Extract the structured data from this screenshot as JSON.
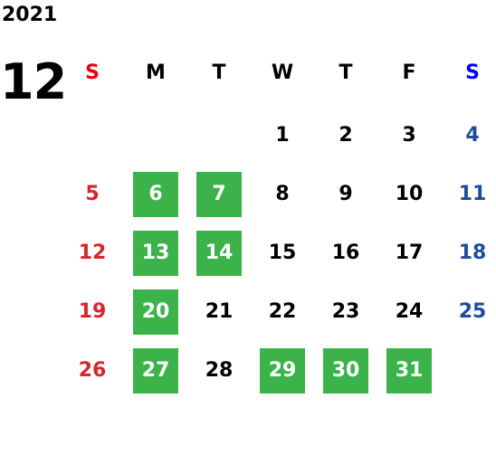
{
  "year": "2021",
  "month": "12",
  "weekdays": [
    "S",
    "M",
    "T",
    "W",
    "T",
    "F",
    "S"
  ],
  "weeks": [
    [
      null,
      null,
      null,
      1,
      2,
      3,
      4
    ],
    [
      5,
      6,
      7,
      8,
      9,
      10,
      11
    ],
    [
      12,
      13,
      14,
      15,
      16,
      17,
      18
    ],
    [
      19,
      20,
      21,
      22,
      23,
      24,
      25
    ],
    [
      26,
      27,
      28,
      29,
      30,
      31,
      null
    ]
  ],
  "highlighted": [
    6,
    7,
    13,
    14,
    20,
    27,
    29,
    30,
    31
  ],
  "colors": {
    "highlight": "#3bb34a",
    "sunday_header": "#e60012",
    "saturday_header": "#0000ff",
    "sunday": "#d7262b",
    "saturday": "#1e4d9b",
    "weekday": "#000000",
    "highlight_text": "#ffffff"
  }
}
